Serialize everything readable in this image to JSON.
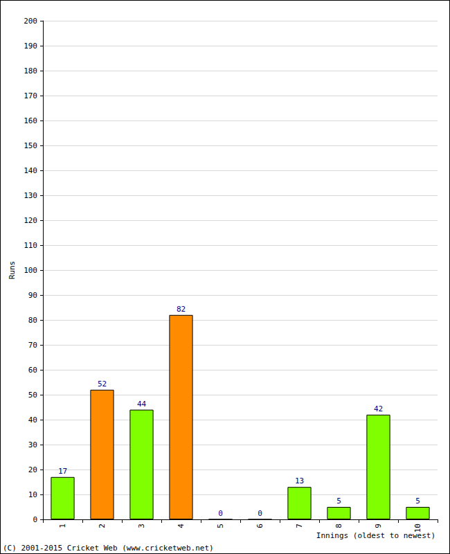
{
  "chart_data": {
    "type": "bar",
    "categories": [
      "1",
      "2",
      "3",
      "4",
      "5",
      "6",
      "7",
      "8",
      "9",
      "10"
    ],
    "values": [
      17,
      52,
      44,
      82,
      0,
      0,
      13,
      5,
      42,
      5
    ],
    "colors": [
      "#80ff00",
      "#ff8c00",
      "#80ff00",
      "#ff8c00",
      "#80ff00",
      "#80ff00",
      "#80ff00",
      "#80ff00",
      "#80ff00",
      "#80ff00"
    ],
    "xlabel": "Innings (oldest to newest)",
    "ylabel": "Runs",
    "annotation": "(C) 2001-2015 Cricket Web (www.cricketweb.net)",
    "ylim": [
      0,
      200
    ],
    "yticks": [
      0,
      10,
      20,
      30,
      40,
      50,
      60,
      70,
      80,
      90,
      100,
      110,
      120,
      130,
      140,
      150,
      160,
      170,
      180,
      190,
      200
    ],
    "grid": true,
    "data_labels": true
  }
}
